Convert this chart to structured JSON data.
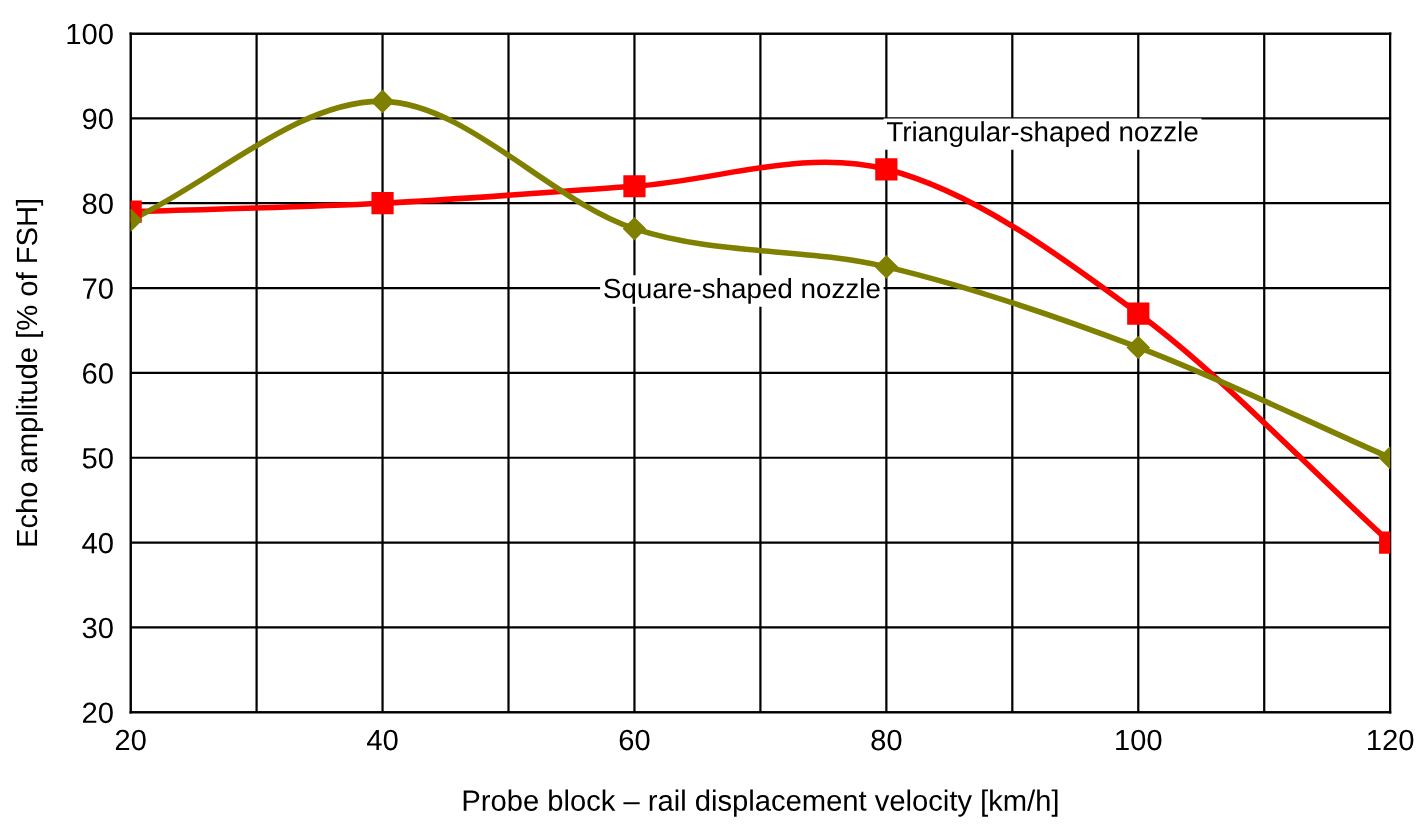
{
  "chart_data": {
    "type": "line",
    "xlabel": "Probe block – rail displacement velocity [km/h]",
    "ylabel": "Echo amplitude [% of FSH]",
    "x": [
      20,
      40,
      60,
      80,
      100,
      120
    ],
    "series": [
      {
        "name": "Triangular-shaped nozzle",
        "color": "#ff0000",
        "marker": "square",
        "values": [
          79,
          80,
          82,
          84,
          67,
          40
        ]
      },
      {
        "name": "Square-shaped nozzle",
        "color": "#808000",
        "marker": "diamond",
        "values": [
          78,
          92,
          77,
          72.5,
          63,
          50
        ]
      }
    ],
    "xlim": [
      20,
      120
    ],
    "xticks": [
      20,
      {
        "value": 30,
        "label": null
      },
      40,
      {
        "value": 50,
        "label": null
      },
      60,
      {
        "value": 70,
        "label": null
      },
      80,
      {
        "value": 90,
        "label": null
      },
      100,
      {
        "value": 110,
        "label": null
      },
      120
    ],
    "ylim": [
      20,
      100
    ],
    "yticks": [
      20,
      30,
      40,
      50,
      60,
      70,
      80,
      90,
      100
    ],
    "grid": true,
    "legend": false,
    "line_style": "solid"
  }
}
